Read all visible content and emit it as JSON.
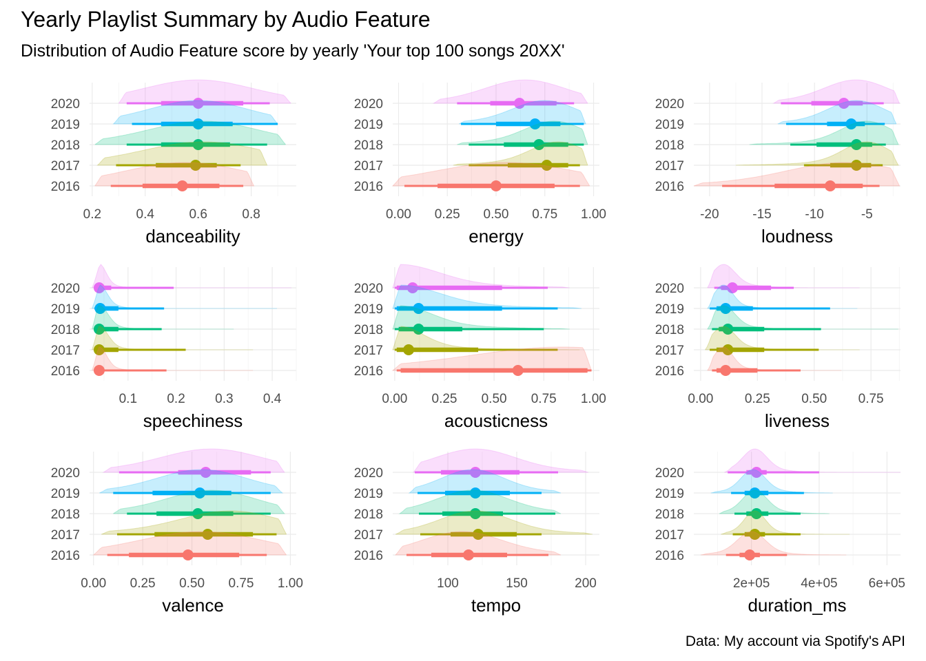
{
  "title": "Yearly Playlist Summary by Audio Feature",
  "subtitle": "Distribution of Audio Feature score by yearly 'Your top 100 songs 20XX'",
  "caption": "Data: My account via Spotify's API",
  "colors": {
    "2016": "#F8766D",
    "2017": "#A3A500",
    "2018": "#00BF7D",
    "2019": "#00B0F6",
    "2020": "#E76BF3"
  },
  "chart_data": {
    "type": "halfeye",
    "years": [
      "2016",
      "2017",
      "2018",
      "2019",
      "2020"
    ],
    "facets": [
      {
        "xlabel": "danceability",
        "xlim": [
          0.19,
          0.97
        ],
        "ticks": [
          0.2,
          0.4,
          0.6,
          0.8
        ],
        "tick_labels": [
          "0.2",
          "0.4",
          "0.6",
          "0.8"
        ],
        "series": {
          "2016": {
            "density_range": [
              0.21,
              0.81
            ],
            "peak": 0.55,
            "spread": 0.22,
            "median": 0.54,
            "ci66": [
              0.39,
              0.68
            ],
            "ci95": [
              0.27,
              0.77
            ]
          },
          "2017": {
            "density_range": [
              0.22,
              0.86
            ],
            "peak": 0.62,
            "spread": 0.22,
            "median": 0.59,
            "ci66": [
              0.44,
              0.67
            ],
            "ci95": [
              0.29,
              0.76
            ]
          },
          "2018": {
            "density_range": [
              0.21,
              0.93
            ],
            "peak": 0.62,
            "spread": 0.2,
            "median": 0.6,
            "ci66": [
              0.46,
              0.72
            ],
            "ci95": [
              0.33,
              0.86
            ]
          },
          "2019": {
            "density_range": [
              0.28,
              0.9
            ],
            "peak": 0.6,
            "spread": 0.18,
            "median": 0.6,
            "ci66": [
              0.46,
              0.73
            ],
            "ci95": [
              0.35,
              0.9
            ]
          },
          "2020": {
            "density_range": [
              0.3,
              0.95
            ],
            "peak": 0.6,
            "spread": 0.2,
            "median": 0.6,
            "ci66": [
              0.46,
              0.77
            ],
            "ci95": [
              0.33,
              0.87
            ]
          }
        }
      },
      {
        "xlabel": "energy",
        "xlim": [
          -0.03,
          1.03
        ],
        "ticks": [
          0,
          0.25,
          0.5,
          0.75,
          1
        ],
        "tick_labels": [
          "0.00",
          "0.25",
          "0.50",
          "0.75",
          "1.00"
        ],
        "series": {
          "2016": {
            "density_range": [
              -0.03,
              0.98
            ],
            "peak": 0.55,
            "spread": 0.35,
            "median": 0.5,
            "ci66": [
              0.2,
              0.8
            ],
            "ci95": [
              0.03,
              0.93
            ]
          },
          "2017": {
            "density_range": [
              0.28,
              0.97
            ],
            "peak": 0.82,
            "spread": 0.14,
            "median": 0.76,
            "ci66": [
              0.56,
              0.87
            ],
            "ci95": [
              0.36,
              0.93
            ]
          },
          "2018": {
            "density_range": [
              0.3,
              0.97
            ],
            "peak": 0.8,
            "spread": 0.15,
            "median": 0.72,
            "ci66": [
              0.54,
              0.87
            ],
            "ci95": [
              0.36,
              0.95
            ]
          },
          "2019": {
            "density_range": [
              0.31,
              0.96
            ],
            "peak": 0.75,
            "spread": 0.16,
            "median": 0.7,
            "ci66": [
              0.5,
              0.83
            ],
            "ci95": [
              0.32,
              0.95
            ]
          },
          "2020": {
            "density_range": [
              0.18,
              0.97
            ],
            "peak": 0.65,
            "spread": 0.2,
            "median": 0.62,
            "ci66": [
              0.47,
              0.81
            ],
            "ci95": [
              0.3,
              0.9
            ]
          }
        }
      },
      {
        "xlabel": "loudness",
        "xlim": [
          -21.5,
          -1.8
        ],
        "ticks": [
          -20,
          -15,
          -10,
          -5
        ],
        "tick_labels": [
          "-20",
          "-15",
          "-10",
          "-5"
        ],
        "series": {
          "2016": {
            "density_range": [
              -21.5,
              -1.9
            ],
            "peak": -7,
            "spread": 5.5,
            "median": -8.5,
            "ci66": [
              -13.8,
              -5.4
            ],
            "ci95": [
              -18.8,
              -3.8
            ]
          },
          "2017": {
            "density_range": [
              -17.5,
              -2.0
            ],
            "peak": -5,
            "spread": 2.2,
            "median": -6.0,
            "ci66": [
              -8.5,
              -4.6
            ],
            "ci95": [
              -11.0,
              -3.5
            ]
          },
          "2018": {
            "density_range": [
              -16.2,
              -2.0
            ],
            "peak": -5,
            "spread": 2.4,
            "median": -6.0,
            "ci66": [
              -9.8,
              -4.5
            ],
            "ci95": [
              -12.3,
              -3.2
            ]
          },
          "2019": {
            "density_range": [
              -13.5,
              -2.2
            ],
            "peak": -6,
            "spread": 2.6,
            "median": -6.5,
            "ci66": [
              -8.8,
              -5.2
            ],
            "ci95": [
              -12.7,
              -3.3
            ]
          },
          "2020": {
            "density_range": [
              -13.9,
              -1.9
            ],
            "peak": -6,
            "spread": 3.0,
            "median": -7.2,
            "ci66": [
              -10.3,
              -5.4
            ],
            "ci95": [
              -13.2,
              -3.4
            ]
          }
        }
      },
      {
        "xlabel": "speechiness",
        "xlim": [
          0.02,
          0.45
        ],
        "ticks": [
          0.1,
          0.2,
          0.3,
          0.4
        ],
        "tick_labels": [
          "0.1",
          "0.2",
          "0.3",
          "0.4"
        ],
        "series": {
          "2016": {
            "density_range": [
              0.025,
              0.36
            ],
            "peak": 0.04,
            "spread": 0.015,
            "median": 0.04,
            "ci66": [
              0.033,
              0.05
            ],
            "ci95": [
              0.03,
              0.18
            ]
          },
          "2017": {
            "density_range": [
              0.025,
              0.36
            ],
            "peak": 0.04,
            "spread": 0.018,
            "median": 0.04,
            "ci66": [
              0.033,
              0.08
            ],
            "ci95": [
              0.03,
              0.22
            ]
          },
          "2018": {
            "density_range": [
              0.025,
              0.32
            ],
            "peak": 0.04,
            "spread": 0.018,
            "median": 0.04,
            "ci66": [
              0.033,
              0.08
            ],
            "ci95": [
              0.03,
              0.17
            ]
          },
          "2019": {
            "density_range": [
              0.025,
              0.41
            ],
            "peak": 0.04,
            "spread": 0.016,
            "median": 0.042,
            "ci66": [
              0.034,
              0.08
            ],
            "ci95": [
              0.03,
              0.175
            ]
          },
          "2020": {
            "density_range": [
              0.025,
              0.44
            ],
            "peak": 0.04,
            "spread": 0.014,
            "median": 0.04,
            "ci66": [
              0.033,
              0.065
            ],
            "ci95": [
              0.03,
              0.195
            ]
          }
        }
      },
      {
        "xlabel": "acousticness",
        "xlim": [
          -0.01,
          1.03
        ],
        "ticks": [
          0,
          0.25,
          0.5,
          0.75,
          1
        ],
        "tick_labels": [
          "0.00",
          "0.25",
          "0.50",
          "0.75",
          "1.00"
        ],
        "series": {
          "2016": {
            "density_range": [
              -0.01,
              0.99
            ],
            "peak": 0.85,
            "spread": 0.45,
            "median": 0.62,
            "ci66": [
              0.03,
              0.97
            ],
            "ci95": [
              0.01,
              0.99
            ]
          },
          "2017": {
            "density_range": [
              -0.01,
              0.93
            ],
            "peak": 0.02,
            "spread": 0.12,
            "median": 0.07,
            "ci66": [
              0.01,
              0.42
            ],
            "ci95": [
              0.0,
              0.82
            ]
          },
          "2018": {
            "density_range": [
              -0.01,
              0.88
            ],
            "peak": 0.02,
            "spread": 0.16,
            "median": 0.12,
            "ci66": [
              0.02,
              0.34
            ],
            "ci95": [
              0.0,
              0.75
            ]
          },
          "2019": {
            "density_range": [
              -0.01,
              0.94
            ],
            "peak": 0.02,
            "spread": 0.2,
            "median": 0.12,
            "ci66": [
              0.01,
              0.54
            ],
            "ci95": [
              0.0,
              0.82
            ]
          },
          "2020": {
            "density_range": [
              -0.01,
              0.88
            ],
            "peak": 0.02,
            "spread": 0.2,
            "median": 0.09,
            "ci66": [
              0.01,
              0.54
            ],
            "ci95": [
              0.0,
              0.77
            ]
          }
        }
      },
      {
        "xlabel": "liveness",
        "xlim": [
          -0.03,
          0.88
        ],
        "ticks": [
          0,
          0.25,
          0.5,
          0.75
        ],
        "tick_labels": [
          "0.00",
          "0.25",
          "0.50",
          "0.75"
        ],
        "series": {
          "2016": {
            "density_range": [
              0.03,
              0.62
            ],
            "peak": 0.1,
            "spread": 0.04,
            "median": 0.11,
            "ci66": [
              0.07,
              0.25
            ],
            "ci95": [
              0.05,
              0.44
            ]
          },
          "2017": {
            "density_range": [
              0.02,
              0.7
            ],
            "peak": 0.1,
            "spread": 0.05,
            "median": 0.12,
            "ci66": [
              0.07,
              0.28
            ],
            "ci95": [
              0.04,
              0.52
            ]
          },
          "2018": {
            "density_range": [
              0.03,
              0.87
            ],
            "peak": 0.1,
            "spread": 0.05,
            "median": 0.12,
            "ci66": [
              0.08,
              0.28
            ],
            "ci95": [
              0.05,
              0.53
            ]
          },
          "2019": {
            "density_range": [
              0.03,
              0.69
            ],
            "peak": 0.1,
            "spread": 0.04,
            "median": 0.11,
            "ci66": [
              0.07,
              0.23
            ],
            "ci95": [
              0.04,
              0.57
            ]
          },
          "2020": {
            "density_range": [
              0.03,
              0.7
            ],
            "peak": 0.1,
            "spread": 0.05,
            "median": 0.14,
            "ci66": [
              0.09,
              0.31
            ],
            "ci95": [
              0.06,
              0.41
            ]
          }
        }
      },
      {
        "xlabel": "valence",
        "xlim": [
          -0.02,
          1.03
        ],
        "ticks": [
          0,
          0.25,
          0.5,
          0.75,
          1
        ],
        "tick_labels": [
          "0.00",
          "0.25",
          "0.50",
          "0.75",
          "1.00"
        ],
        "series": {
          "2016": {
            "density_range": [
              0.0,
              0.98
            ],
            "peak": 0.55,
            "spread": 0.3,
            "median": 0.48,
            "ci66": [
              0.18,
              0.74
            ],
            "ci95": [
              0.07,
              0.88
            ]
          },
          "2017": {
            "density_range": [
              0.04,
              0.98
            ],
            "peak": 0.7,
            "spread": 0.25,
            "median": 0.58,
            "ci66": [
              0.31,
              0.81
            ],
            "ci95": [
              0.12,
              0.93
            ]
          },
          "2018": {
            "density_range": [
              0.1,
              0.97
            ],
            "peak": 0.6,
            "spread": 0.22,
            "median": 0.53,
            "ci66": [
              0.32,
              0.71
            ],
            "ci95": [
              0.17,
              0.9
            ]
          },
          "2019": {
            "density_range": [
              0.03,
              0.96
            ],
            "peak": 0.55,
            "spread": 0.22,
            "median": 0.54,
            "ci66": [
              0.3,
              0.7
            ],
            "ci95": [
              0.1,
              0.9
            ]
          },
          "2020": {
            "density_range": [
              0.05,
              0.97
            ],
            "peak": 0.6,
            "spread": 0.25,
            "median": 0.57,
            "ci66": [
              0.43,
              0.8
            ],
            "ci95": [
              0.13,
              0.9
            ]
          }
        }
      },
      {
        "xlabel": "tempo",
        "xlim": [
          60,
          210
        ],
        "ticks": [
          100,
          150,
          200
        ],
        "tick_labels": [
          "100",
          "150",
          "200"
        ],
        "series": {
          "2016": {
            "density_range": [
              62,
              182
            ],
            "peak": 110,
            "spread": 28,
            "median": 115,
            "ci66": [
              88,
              143
            ],
            "ci95": [
              70,
              173
            ]
          },
          "2017": {
            "density_range": [
              62,
              205
            ],
            "peak": 120,
            "spread": 25,
            "median": 122,
            "ci66": [
              102,
              150
            ],
            "ci95": [
              80,
              168
            ]
          },
          "2018": {
            "density_range": [
              65,
              182
            ],
            "peak": 118,
            "spread": 25,
            "median": 120,
            "ci66": [
              96,
              140
            ],
            "ci95": [
              79,
              178
            ]
          },
          "2019": {
            "density_range": [
              72,
              182
            ],
            "peak": 118,
            "spread": 22,
            "median": 120,
            "ci66": [
              98,
              145
            ],
            "ci95": [
              78,
              168
            ]
          },
          "2020": {
            "density_range": [
              75,
              202
            ],
            "peak": 120,
            "spread": 28,
            "median": 120,
            "ci66": [
              95,
              152
            ],
            "ci95": [
              76,
              180
            ]
          }
        }
      },
      {
        "xlabel": "duration_ms",
        "xlim": [
          30000,
          640000
        ],
        "ticks": [
          200000,
          400000,
          600000
        ],
        "tick_labels": [
          "2e+05",
          "4e+05",
          "6e+05"
        ],
        "series": {
          "2016": {
            "density_range": [
              50000,
              480000
            ],
            "peak": 200000,
            "spread": 40000,
            "median": 195000,
            "ci66": [
              165000,
              225000
            ],
            "ci95": [
              125000,
              305000
            ]
          },
          "2017": {
            "density_range": [
              110000,
              490000
            ],
            "peak": 210000,
            "spread": 30000,
            "median": 210000,
            "ci66": [
              180000,
              240000
            ],
            "ci95": [
              145000,
              345000
            ]
          },
          "2018": {
            "density_range": [
              105000,
              430000
            ],
            "peak": 210000,
            "spread": 35000,
            "median": 215000,
            "ci66": [
              185000,
              250000
            ],
            "ci95": [
              150000,
              345000
            ]
          },
          "2019": {
            "density_range": [
              80000,
              440000
            ],
            "peak": 205000,
            "spread": 35000,
            "median": 210000,
            "ci66": [
              180000,
              250000
            ],
            "ci95": [
              140000,
              355000
            ]
          },
          "2020": {
            "density_range": [
              120000,
              640000
            ],
            "peak": 210000,
            "spread": 35000,
            "median": 215000,
            "ci66": [
              185000,
              245000
            ],
            "ci95": [
              130000,
              400000
            ]
          }
        }
      }
    ]
  }
}
